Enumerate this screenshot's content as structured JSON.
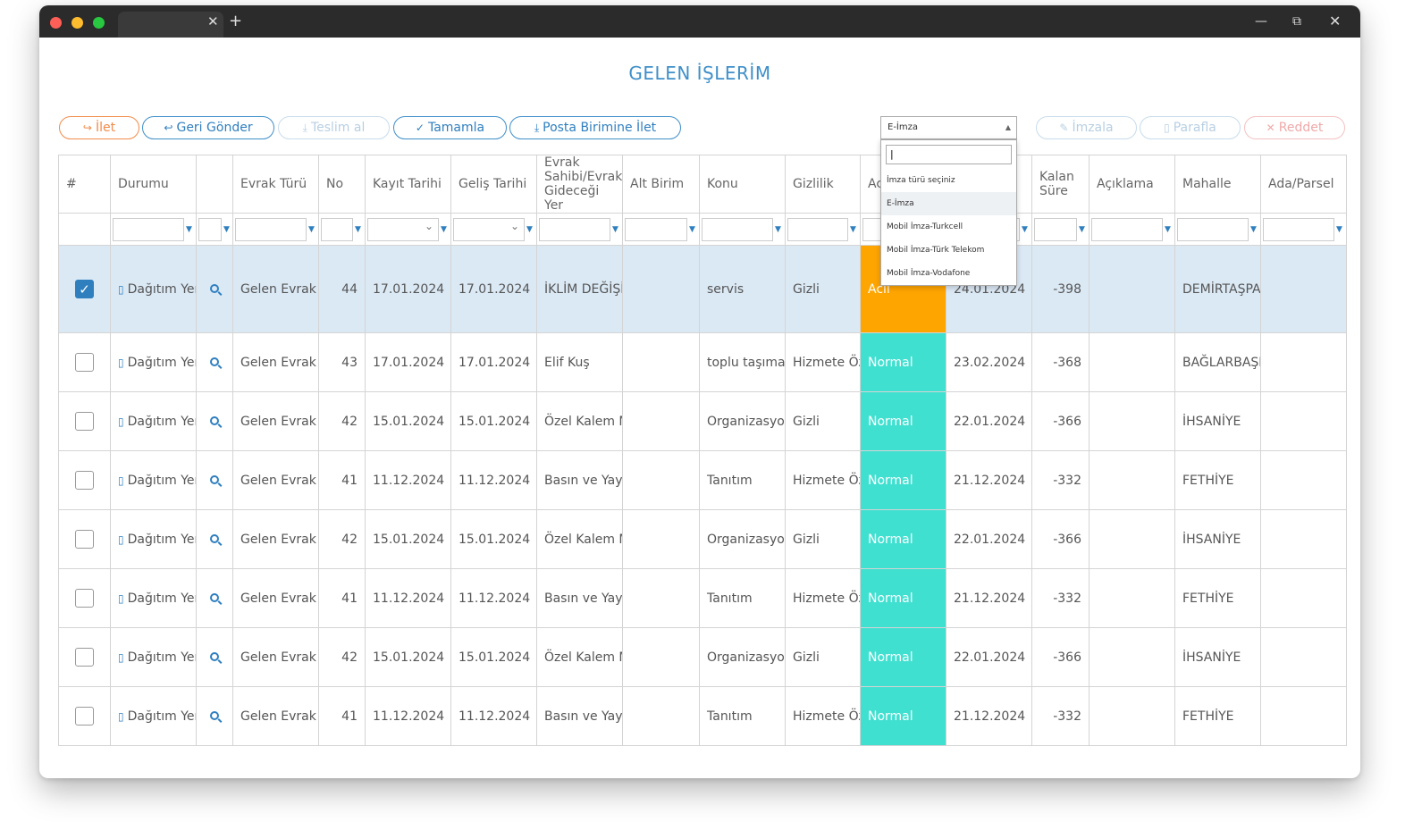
{
  "window": {
    "tab_close": "✕",
    "tab_new": "+",
    "min": "—",
    "max": "⧉",
    "close": "✕"
  },
  "page": {
    "title": "GELEN İŞLERİM"
  },
  "toolbar": {
    "ilet": "İlet",
    "geri_gonder": "Geri Gönder",
    "teslim_al": "Teslim al",
    "tamamla": "Tamamla",
    "posta": "Posta Birimine İlet",
    "imzala": "İmzala",
    "parafla": "Parafla",
    "reddet": "Reddet"
  },
  "signature_select": {
    "selected": "E-İmza",
    "search_value": "|",
    "options": [
      "İmza türü seçiniz",
      "E-İmza",
      "Mobil İmza-Turkcell",
      "Mobil İmza-Türk Telekom",
      "Mobil İmza-Vodafone"
    ]
  },
  "columns": [
    "#",
    "Durumu",
    "",
    "Evrak Türü",
    "No",
    "Kayıt Tarihi",
    "Geliş Tarihi",
    "Evrak Sahibi/Evrak Gideceği Yer",
    "Alt Birim",
    "Konu",
    "Gizlilik",
    "Aciliyet",
    "",
    "Kalan Süre",
    "Açıklama",
    "Mahalle",
    "Ada/Parsel"
  ],
  "rows": [
    {
      "durum": "Dağıtım Yerine Sevk-Bilgi",
      "tur": "Gelen Evrak",
      "no": "44",
      "kayit": "17.01.2024",
      "gelis": "17.01.2024",
      "sahibi": "İKLİM DEĞİŞİKLİĞİ VE SIFIR ATIK MÜDÜRLÜĞÜ",
      "alt": "",
      "konu": "servis",
      "gizlilik": "Gizli",
      "aciliyet": "Acil",
      "tarih": "24.01.2024",
      "kalan": "-398",
      "aciklama": "",
      "mahalle": "DEMİRTAŞPAŞA",
      "ada": ""
    },
    {
      "durum": "Dağıtım Yerine Sevk-Bilgi",
      "tur": "Gelen Evrak",
      "no": "43",
      "kayit": "17.01.2024",
      "gelis": "17.01.2024",
      "sahibi": "Elif Kuş",
      "alt": "",
      "konu": "toplu taşıma",
      "gizlilik": "Hizmete Özel",
      "aciliyet": "Normal",
      "tarih": "23.02.2024",
      "kalan": "-368",
      "aciklama": "",
      "mahalle": "BAĞLARBAŞI",
      "ada": ""
    },
    {
      "durum": "Dağıtım Yerine Sevk-Bilgi",
      "tur": "Gelen Evrak",
      "no": "42",
      "kayit": "15.01.2024",
      "gelis": "15.01.2024",
      "sahibi": "Özel Kalem Müdürlüğü",
      "alt": "",
      "konu": "Organizasyon",
      "gizlilik": "Gizli",
      "aciliyet": "Normal",
      "tarih": "22.01.2024",
      "kalan": "-366",
      "aciklama": "",
      "mahalle": "İHSANİYE",
      "ada": ""
    },
    {
      "durum": "Dağıtım Yerine Sevk-Bilgi",
      "tur": "Gelen Evrak",
      "no": "41",
      "kayit": "11.12.2024",
      "gelis": "11.12.2024",
      "sahibi": "Basın ve Yayın Müdürlüğü",
      "alt": "",
      "konu": "Tanıtım",
      "gizlilik": "Hizmete Özel",
      "aciliyet": "Normal",
      "tarih": "21.12.2024",
      "kalan": "-332",
      "aciklama": "",
      "mahalle": "FETHİYE",
      "ada": ""
    },
    {
      "durum": "Dağıtım Yerine Sevk-Bilgi",
      "tur": "Gelen Evrak",
      "no": "42",
      "kayit": "15.01.2024",
      "gelis": "15.01.2024",
      "sahibi": "Özel Kalem Müdürlüğü",
      "alt": "",
      "konu": "Organizasyon",
      "gizlilik": "Gizli",
      "aciliyet": "Normal",
      "tarih": "22.01.2024",
      "kalan": "-366",
      "aciklama": "",
      "mahalle": "İHSANİYE",
      "ada": ""
    },
    {
      "durum": "Dağıtım Yerine Sevk-Bilgi",
      "tur": "Gelen Evrak",
      "no": "41",
      "kayit": "11.12.2024",
      "gelis": "11.12.2024",
      "sahibi": "Basın ve Yayın Müdürlüğü",
      "alt": "",
      "konu": "Tanıtım",
      "gizlilik": "Hizmete Özel",
      "aciliyet": "Normal",
      "tarih": "21.12.2024",
      "kalan": "-332",
      "aciklama": "",
      "mahalle": "FETHİYE",
      "ada": ""
    },
    {
      "durum": "Dağıtım Yerine Sevk-Bilgi",
      "tur": "Gelen Evrak",
      "no": "42",
      "kayit": "15.01.2024",
      "gelis": "15.01.2024",
      "sahibi": "Özel Kalem Müdürlüğü",
      "alt": "",
      "konu": "Organizasyon",
      "gizlilik": "Gizli",
      "aciliyet": "Normal",
      "tarih": "22.01.2024",
      "kalan": "-366",
      "aciklama": "",
      "mahalle": "İHSANİYE",
      "ada": ""
    },
    {
      "durum": "Dağıtım Yerine Sevk-Bilgi",
      "tur": "Gelen Evrak",
      "no": "41",
      "kayit": "11.12.2024",
      "gelis": "11.12.2024",
      "sahibi": "Basın ve Yayın Müdürlüğü",
      "alt": "",
      "konu": "Tanıtım",
      "gizlilik": "Hizmete Özel",
      "aciliyet": "Normal",
      "tarih": "21.12.2024",
      "kalan": "-332",
      "aciklama": "",
      "mahalle": "FETHİYE",
      "ada": ""
    }
  ],
  "selected_rows": [
    0
  ],
  "colors": {
    "accent": "#2f7fbf",
    "urgent": "#ffa500",
    "normal": "#40e0d0",
    "selected_row": "#dbe9f5"
  },
  "icons": {
    "document": "document-icon",
    "zoom": "zoom-icon",
    "funnel": "filter-funnel-icon"
  }
}
